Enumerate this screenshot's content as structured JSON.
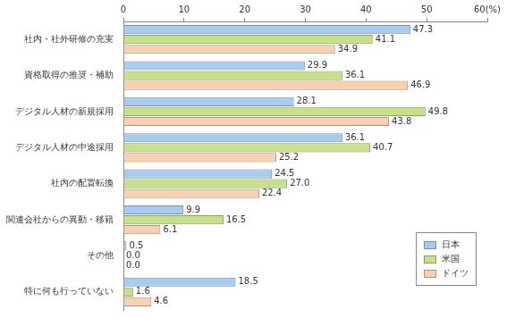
{
  "chart_data": {
    "type": "bar",
    "orientation": "horizontal",
    "categories": [
      "社内・社外研修の充実",
      "資格取得の推奨・補助",
      "デジタル人材の新規採用",
      "デジタル人材の中途採用",
      "社内の配置転換",
      "関連会社からの異動・移籍",
      "その他",
      "特に何も行っていない"
    ],
    "series": [
      {
        "name": "日本",
        "color": "#a9cbee",
        "values": [
          47.3,
          29.9,
          28.1,
          36.1,
          24.5,
          9.9,
          0.5,
          18.5
        ],
        "value_labels": [
          "47.3",
          "29.9",
          "28.1",
          "36.1",
          "24.5",
          "9.9",
          "0.5",
          "18.5"
        ]
      },
      {
        "name": "米国",
        "color": "#c6e08c",
        "values": [
          41.1,
          36.1,
          49.8,
          40.7,
          27.0,
          16.5,
          0.0,
          1.6
        ],
        "value_labels": [
          "41.1",
          "36.1",
          "49.8",
          "40.7",
          "27.0",
          "16.5",
          "0.0",
          "1.6"
        ]
      },
      {
        "name": "ドイツ",
        "color": "#f6d2b2",
        "values": [
          34.9,
          46.9,
          43.8,
          25.2,
          22.4,
          6.1,
          0.0,
          4.6
        ],
        "value_labels": [
          "34.9",
          "46.9",
          "43.8",
          "25.2",
          "22.4",
          "6.1",
          "0.0",
          "4.6"
        ]
      }
    ],
    "xlim": [
      0,
      60
    ],
    "xticks": [
      0,
      10,
      20,
      30,
      40,
      50,
      {
        "value": 60,
        "label": "60(%)"
      }
    ],
    "grid": false,
    "legend": "bottom-right",
    "data_labels": true
  }
}
